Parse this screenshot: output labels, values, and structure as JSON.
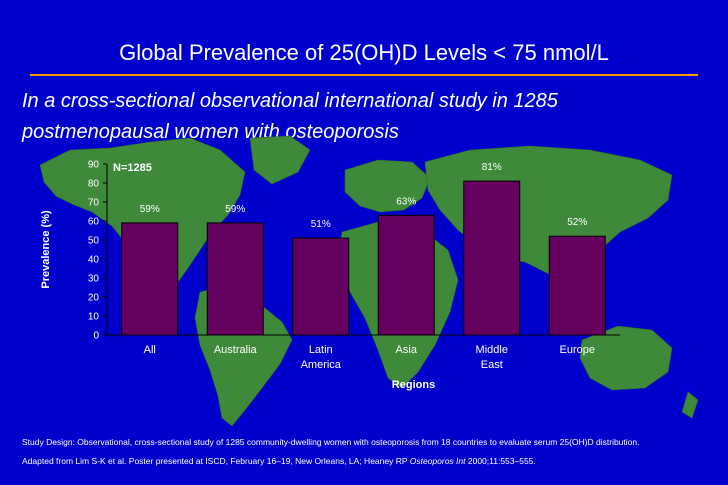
{
  "slide": {
    "title": "Global Prevalence of 25(OH)D Levels < 75 nmol/L",
    "subtitle_line1": "In a cross-sectional observational international study in 1285",
    "subtitle_line2": "postmenopausal women with osteoporosis",
    "footer_design": "Study Design: Observational, cross-sectional study of 1285 community-dwelling women with osteoporosis from 18 countries to evaluate serum 25(OH)D distribution.",
    "footer_adapted_pre": "Adapted from Lim S-K et al. Poster presented at ISCD, February 16–19, New Orleans, LA; Heaney RP ",
    "footer_journal": "Osteoporos Int",
    "footer_adapted_post": " 2000;11:553–555."
  },
  "colors": {
    "background": "#0000cc",
    "land": "#3e8a3a",
    "bar_fill": "#66005e",
    "bar_stroke": "#000000",
    "divider": "#ff9900"
  },
  "chart_data": {
    "type": "bar",
    "annotation": "N=1285",
    "categories": [
      [
        "All"
      ],
      [
        "Australia"
      ],
      [
        "Latin",
        "America"
      ],
      [
        "Asia"
      ],
      [
        "Middle",
        "East"
      ],
      [
        "Europe"
      ]
    ],
    "values": [
      59,
      59,
      51,
      63,
      81,
      52
    ],
    "data_labels": [
      "59%",
      "59%",
      "51%",
      "63%",
      "81%",
      "52%"
    ],
    "xlabel": "Regions",
    "ylabel": "Prevalence (%)",
    "ylim": [
      0,
      90
    ],
    "yticks": [
      0,
      10,
      20,
      30,
      40,
      50,
      60,
      70,
      80,
      90
    ],
    "grid": false
  }
}
